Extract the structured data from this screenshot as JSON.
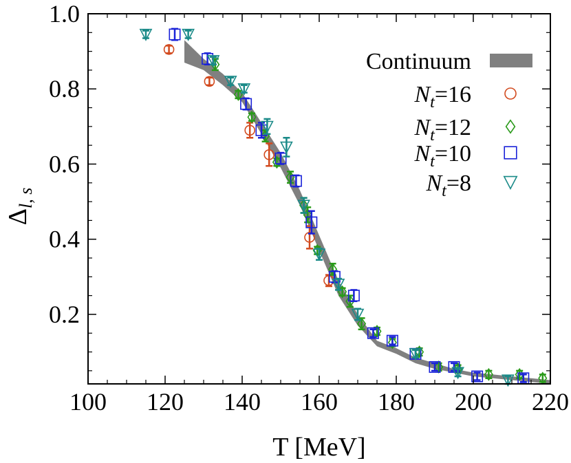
{
  "chart_data": {
    "type": "scatter",
    "title": "",
    "xlabel": "T [MeV]",
    "ylabel_main": "Δ",
    "ylabel_sub": "l, s",
    "xlim": [
      100,
      220
    ],
    "ylim": [
      0.015,
      1.0
    ],
    "x_ticks": [
      100,
      120,
      140,
      160,
      180,
      200,
      220
    ],
    "x_tick_labels": [
      "100",
      "120",
      "140",
      "160",
      "180",
      "200",
      "220"
    ],
    "y_ticks": [
      0.2,
      0.4,
      0.6,
      0.8,
      1.0
    ],
    "y_tick_labels": [
      "0.2",
      "0.4",
      "0.6",
      "0.8",
      "1.0"
    ],
    "grid": false,
    "legend_position": "top-right",
    "band": {
      "name": "Continuum",
      "color": "#808080",
      "upper": [
        [
          125,
          0.93
        ],
        [
          130,
          0.88
        ],
        [
          135,
          0.84
        ],
        [
          140,
          0.79
        ],
        [
          145,
          0.71
        ],
        [
          150,
          0.63
        ],
        [
          155,
          0.53
        ],
        [
          160,
          0.41
        ],
        [
          165,
          0.29
        ],
        [
          170,
          0.2
        ],
        [
          175,
          0.13
        ],
        [
          180,
          0.11
        ],
        [
          185,
          0.085
        ],
        [
          190,
          0.07
        ],
        [
          195,
          0.055
        ],
        [
          200,
          0.045
        ],
        [
          205,
          0.04
        ],
        [
          210,
          0.035
        ],
        [
          215,
          0.03
        ],
        [
          220,
          0.025
        ]
      ],
      "lower": [
        [
          125,
          0.87
        ],
        [
          130,
          0.85
        ],
        [
          135,
          0.81
        ],
        [
          140,
          0.765
        ],
        [
          145,
          0.68
        ],
        [
          150,
          0.59
        ],
        [
          155,
          0.49
        ],
        [
          160,
          0.37
        ],
        [
          165,
          0.25
        ],
        [
          170,
          0.17
        ],
        [
          175,
          0.115
        ],
        [
          180,
          0.095
        ],
        [
          185,
          0.07
        ],
        [
          190,
          0.055
        ],
        [
          195,
          0.045
        ],
        [
          200,
          0.035
        ],
        [
          205,
          0.03
        ],
        [
          210,
          0.025
        ],
        [
          215,
          0.02
        ],
        [
          220,
          0.015
        ]
      ]
    },
    "series": [
      {
        "name": "Nt=16",
        "label_main": "N",
        "label_sub": "t",
        "label_rest": "=16",
        "marker": "circle",
        "color": "#d24a1e",
        "points": [
          [
            121,
            0.905,
            0.01
          ],
          [
            131.5,
            0.82,
            0.01
          ],
          [
            142,
            0.69,
            0.02
          ],
          [
            147,
            0.625,
            0.03
          ],
          [
            157.5,
            0.405,
            0.03
          ],
          [
            162.5,
            0.29,
            0.015
          ]
        ]
      },
      {
        "name": "Nt=12",
        "label_main": "N",
        "label_sub": "t",
        "label_rest": "=12",
        "marker": "diamond",
        "color": "#2a9a1a",
        "points": [
          [
            133,
            0.865,
            0.015
          ],
          [
            139,
            0.785,
            0.01
          ],
          [
            142.5,
            0.725,
            0.01
          ],
          [
            146,
            0.675,
            0.015
          ],
          [
            149,
            0.605,
            0.01
          ],
          [
            152.5,
            0.565,
            0.015
          ],
          [
            156,
            0.49,
            0.02
          ],
          [
            157,
            0.465,
            0.02
          ],
          [
            159.5,
            0.37,
            0.01
          ],
          [
            163.5,
            0.32,
            0.015
          ],
          [
            166,
            0.26,
            0.01
          ],
          [
            168,
            0.235,
            0.015
          ],
          [
            171,
            0.175,
            0.015
          ],
          [
            175,
            0.155,
            0.01
          ],
          [
            179,
            0.125,
            0.01
          ],
          [
            186,
            0.1,
            0.01
          ],
          [
            191,
            0.06,
            0.01
          ],
          [
            196,
            0.055,
            0.01
          ],
          [
            204,
            0.04,
            0.01
          ],
          [
            212,
            0.04,
            0.01
          ],
          [
            218,
            0.03,
            0.01
          ]
        ]
      },
      {
        "name": "Nt=10",
        "label_main": "N",
        "label_sub": "t",
        "label_rest": "=10",
        "marker": "square",
        "color": "#1a22d8",
        "points": [
          [
            122.5,
            0.945,
            0.015
          ],
          [
            131,
            0.88,
            0.015
          ],
          [
            141,
            0.76,
            0.015
          ],
          [
            145,
            0.69,
            0.02
          ],
          [
            150,
            0.615,
            0.015
          ],
          [
            154,
            0.555,
            0.015
          ],
          [
            158,
            0.445,
            0.03
          ],
          [
            164,
            0.3,
            0.015
          ],
          [
            169,
            0.25,
            0.015
          ],
          [
            174,
            0.15,
            0.01
          ],
          [
            179,
            0.13,
            0.01
          ],
          [
            185,
            0.095,
            0.01
          ],
          [
            190,
            0.06,
            0.01
          ],
          [
            195,
            0.06,
            0.01
          ],
          [
            201,
            0.035,
            0.01
          ],
          [
            213,
            0.03,
            0.01
          ]
        ]
      },
      {
        "name": "Nt=8",
        "label_main": "N",
        "label_sub": "t",
        "label_rest": "=8",
        "marker": "triangle-down",
        "color": "#1a8a88",
        "points": [
          [
            115,
            0.945,
            0.01
          ],
          [
            126,
            0.945,
            0.01
          ],
          [
            132.5,
            0.875,
            0.01
          ],
          [
            137,
            0.82,
            0.01
          ],
          [
            140.5,
            0.8,
            0.01
          ],
          [
            146.5,
            0.7,
            0.02
          ],
          [
            151.5,
            0.645,
            0.025
          ],
          [
            156,
            0.49,
            0.02
          ],
          [
            160,
            0.36,
            0.015
          ],
          [
            165,
            0.28,
            0.015
          ],
          [
            170,
            0.2,
            0.015
          ],
          [
            185,
            0.095,
            0.01
          ],
          [
            196,
            0.045,
            0.01
          ],
          [
            209,
            0.025,
            0.01
          ]
        ]
      }
    ]
  }
}
